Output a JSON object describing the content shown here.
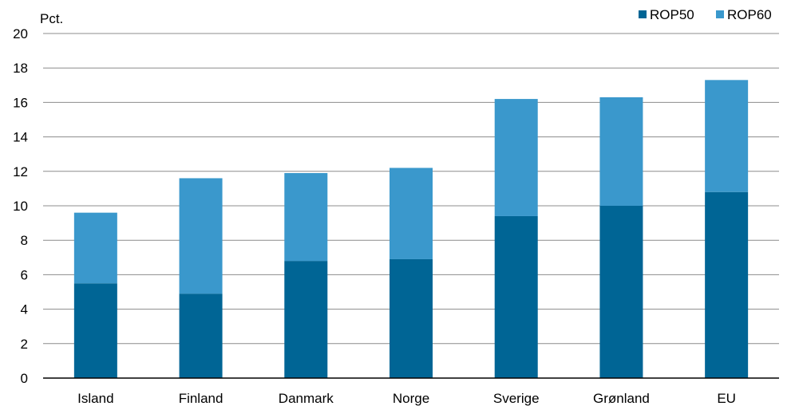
{
  "chart_data": {
    "type": "bar",
    "stacked": true,
    "ylabel": "Pct.",
    "categories": [
      "Island",
      "Finland",
      "Danmark",
      "Norge",
      "Sverige",
      "Grønland",
      "EU"
    ],
    "series": [
      {
        "name": "ROP50",
        "color": "#006595",
        "values": [
          5.5,
          4.9,
          6.8,
          6.9,
          9.4,
          10.0,
          10.8
        ]
      },
      {
        "name": "ROP60",
        "color": "#3a98cc",
        "values": [
          4.1,
          6.7,
          5.1,
          5.3,
          6.8,
          6.3,
          6.5
        ]
      }
    ],
    "ylim": [
      0,
      20
    ],
    "yticks": [
      "0",
      "2",
      "4",
      "6",
      "8",
      "10",
      "12",
      "14",
      "16",
      "18",
      "20"
    ],
    "grid": true,
    "legend_position": "top-right"
  }
}
